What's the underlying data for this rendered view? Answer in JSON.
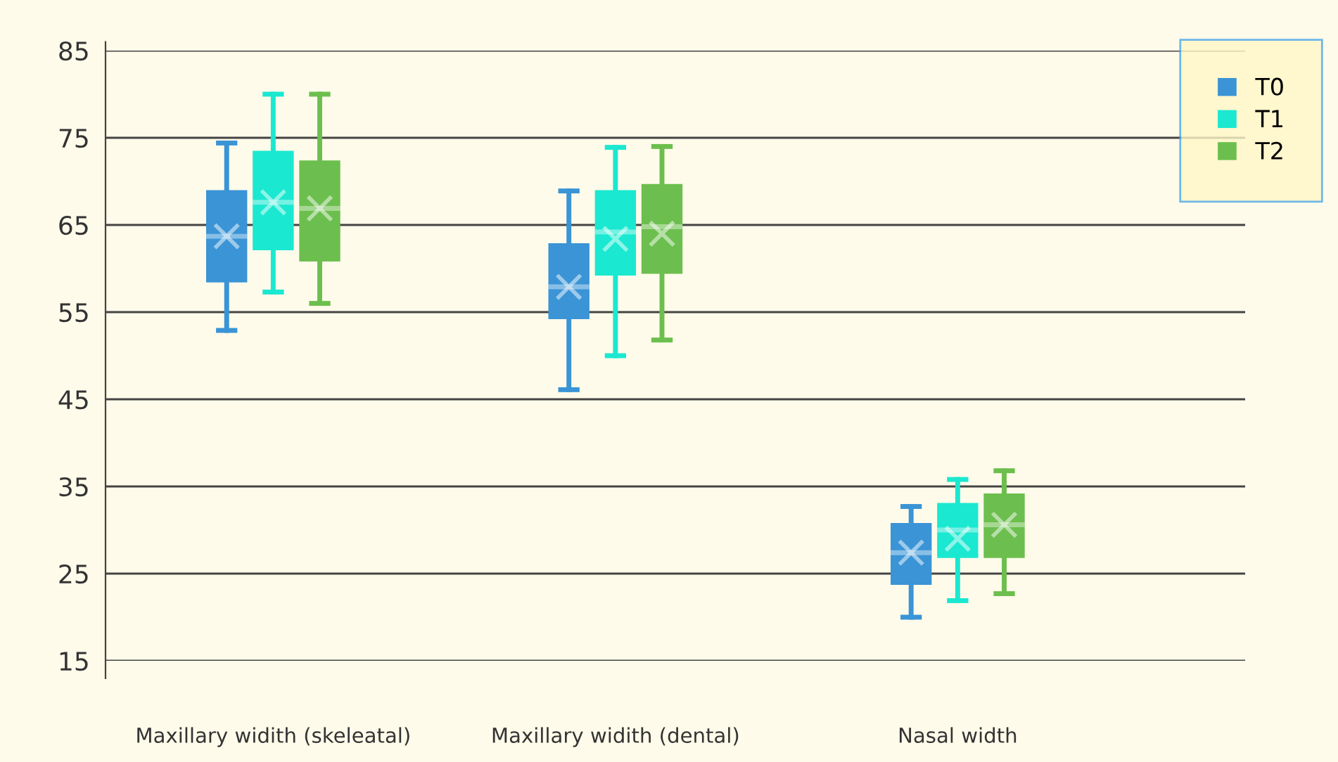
{
  "chart_data": {
    "type": "box",
    "categories": [
      "Maxillary widith (skeleatal)",
      "Maxillary widith (dental)",
      "Nasal width"
    ],
    "ylim": [
      15,
      85
    ],
    "yticks": [
      15,
      25,
      35,
      45,
      55,
      65,
      75,
      85
    ],
    "grid": "y",
    "legend": "top right",
    "series": [
      {
        "name": "T0",
        "color": "#3a94d6",
        "boxes": [
          {
            "low": 52.9,
            "q1": 58.4,
            "median": 63.7,
            "q3": 69.0,
            "high": 74.4,
            "mean": 63.7
          },
          {
            "low": 46.1,
            "q1": 54.2,
            "median": 57.9,
            "q3": 62.9,
            "high": 68.9,
            "mean": 57.9
          },
          {
            "low": 20.0,
            "q1": 23.7,
            "median": 27.4,
            "q3": 30.8,
            "high": 32.7,
            "mean": 27.4
          }
        ]
      },
      {
        "name": "T1",
        "color": "#1ae8d0",
        "boxes": [
          {
            "low": 57.3,
            "q1": 62.1,
            "median": 67.6,
            "q3": 73.5,
            "high": 80.0,
            "mean": 67.6
          },
          {
            "low": 50.0,
            "q1": 59.2,
            "median": 64.2,
            "q3": 69.0,
            "high": 73.9,
            "mean": 63.4
          },
          {
            "low": 21.9,
            "q1": 26.8,
            "median": 30.0,
            "q3": 33.1,
            "high": 35.8,
            "mean": 29.0
          }
        ]
      },
      {
        "name": "T2",
        "color": "#6cbf4e",
        "boxes": [
          {
            "low": 56.0,
            "q1": 60.8,
            "median": 66.9,
            "q3": 72.4,
            "high": 80.0,
            "mean": 66.9
          },
          {
            "low": 51.8,
            "q1": 59.4,
            "median": 64.8,
            "q3": 69.7,
            "high": 74.0,
            "mean": 64.0
          },
          {
            "low": 22.7,
            "q1": 26.8,
            "median": 30.6,
            "q3": 34.2,
            "high": 36.8,
            "mean": 30.6
          }
        ]
      }
    ]
  }
}
